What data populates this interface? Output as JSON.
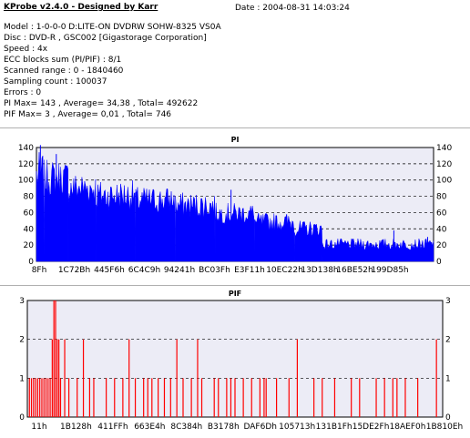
{
  "info": {
    "title": "KProbe v2.4.0 - Designed by Karr",
    "date": "Date : 2004-08-31 14:03:24",
    "lines": [
      "Model : 1-0-0-0 D:LITE-ON DVDRW SOHW-8325  VS0A",
      "Disc : DVD-R , GSC002 [Gigastorage Corporation]",
      "Speed : 4x",
      "ECC blocks sum (PI/PIF) : 8/1",
      "Scanned range : 0 - 1840460",
      "Sampling count : 100037",
      "Errors : 0",
      "PI Max= 143 , Average= 34,38 , Total= 492622",
      "PIF Max= 3 , Average= 0,01 , Total= 746"
    ]
  },
  "chart_data": [
    {
      "type": "area",
      "title": "PI",
      "color": "#0000ff",
      "grid": true,
      "ylim": [
        0,
        140
      ],
      "yticks": [
        "0",
        "20",
        "40",
        "60",
        "80",
        "100",
        "120",
        "140"
      ],
      "xticks": [
        "8Fh",
        "1C72Bh",
        "445F6h",
        "6C4C9h",
        "94241h",
        "BC03Fh",
        "E3F11h",
        "10EC22h",
        "13D138h",
        "16BE52h",
        "199D85h"
      ],
      "segments": [
        {
          "from": 0.0,
          "to": 0.02,
          "low": 75,
          "high": 135
        },
        {
          "from": 0.02,
          "to": 0.08,
          "low": 80,
          "high": 125
        },
        {
          "from": 0.08,
          "to": 0.15,
          "low": 70,
          "high": 110
        },
        {
          "from": 0.15,
          "to": 0.25,
          "low": 62,
          "high": 100
        },
        {
          "from": 0.25,
          "to": 0.35,
          "low": 58,
          "high": 92
        },
        {
          "from": 0.35,
          "to": 0.45,
          "low": 52,
          "high": 85
        },
        {
          "from": 0.45,
          "to": 0.55,
          "low": 46,
          "high": 72
        },
        {
          "from": 0.55,
          "to": 0.65,
          "low": 36,
          "high": 60
        },
        {
          "from": 0.65,
          "to": 0.72,
          "low": 30,
          "high": 50
        },
        {
          "from": 0.72,
          "to": 1.0,
          "low": 14,
          "high": 28
        }
      ],
      "spikes": [
        {
          "x": 0.01,
          "y": 143
        },
        {
          "x": 0.05,
          "y": 132
        },
        {
          "x": 0.49,
          "y": 88
        },
        {
          "x": 0.9,
          "y": 38
        },
        {
          "x": 0.985,
          "y": 30
        }
      ]
    },
    {
      "type": "bar",
      "title": "PIF",
      "color": "#ff0000",
      "grid": true,
      "ylim": [
        0,
        3
      ],
      "yticks": [
        "0",
        "1",
        "2",
        "3"
      ],
      "xticks": [
        "11h",
        "1B128h",
        "411FFh",
        "663E4h",
        "8C384h",
        "B3178h",
        "DAF6Dh",
        "105713h",
        "131B1Fh",
        "15DE2Fh",
        "18AEF0h",
        "1B810Eh"
      ],
      "bars": [
        [
          0.005,
          1
        ],
        [
          0.01,
          1
        ],
        [
          0.015,
          1
        ],
        [
          0.02,
          1
        ],
        [
          0.025,
          1
        ],
        [
          0.03,
          1
        ],
        [
          0.035,
          1
        ],
        [
          0.04,
          1
        ],
        [
          0.045,
          1
        ],
        [
          0.05,
          1
        ],
        [
          0.055,
          1
        ],
        [
          0.06,
          2
        ],
        [
          0.064,
          3
        ],
        [
          0.068,
          3
        ],
        [
          0.072,
          2
        ],
        [
          0.076,
          2
        ],
        [
          0.08,
          1
        ],
        [
          0.09,
          2
        ],
        [
          0.1,
          1
        ],
        [
          0.12,
          1
        ],
        [
          0.135,
          2
        ],
        [
          0.15,
          1
        ],
        [
          0.16,
          1
        ],
        [
          0.19,
          1
        ],
        [
          0.21,
          1
        ],
        [
          0.23,
          1
        ],
        [
          0.245,
          2
        ],
        [
          0.26,
          1
        ],
        [
          0.28,
          1
        ],
        [
          0.29,
          1
        ],
        [
          0.3,
          1
        ],
        [
          0.315,
          1
        ],
        [
          0.33,
          1
        ],
        [
          0.345,
          1
        ],
        [
          0.36,
          2
        ],
        [
          0.375,
          1
        ],
        [
          0.395,
          1
        ],
        [
          0.41,
          2
        ],
        [
          0.42,
          1
        ],
        [
          0.45,
          1
        ],
        [
          0.46,
          1
        ],
        [
          0.48,
          1
        ],
        [
          0.49,
          1
        ],
        [
          0.5,
          1
        ],
        [
          0.52,
          1
        ],
        [
          0.54,
          1
        ],
        [
          0.56,
          1
        ],
        [
          0.57,
          1
        ],
        [
          0.575,
          1
        ],
        [
          0.6,
          1
        ],
        [
          0.63,
          1
        ],
        [
          0.65,
          2
        ],
        [
          0.69,
          1
        ],
        [
          0.71,
          1
        ],
        [
          0.74,
          1
        ],
        [
          0.78,
          1
        ],
        [
          0.8,
          1
        ],
        [
          0.84,
          1
        ],
        [
          0.86,
          1
        ],
        [
          0.88,
          1
        ],
        [
          0.89,
          1
        ],
        [
          0.91,
          1
        ],
        [
          0.94,
          1
        ],
        [
          0.985,
          2
        ]
      ]
    }
  ]
}
